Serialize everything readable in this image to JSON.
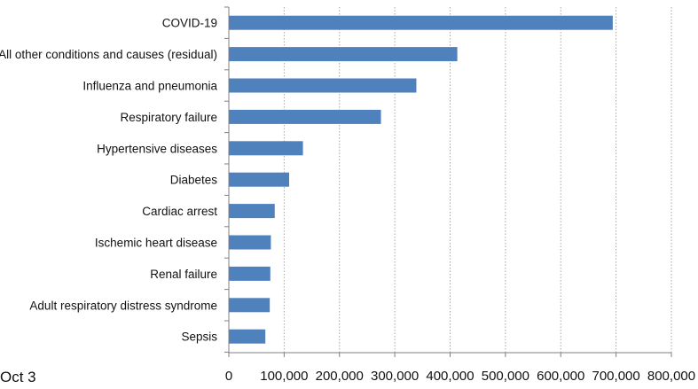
{
  "corner_note": "Oct 3",
  "colors": {
    "bar": "#4f81bd",
    "grid": "#a6a6a6",
    "axis": "#808080"
  },
  "chart_data": {
    "type": "bar",
    "orientation": "horizontal",
    "categories": [
      "COVID-19",
      "All other conditions and causes (residual)",
      "Influenza and pneumonia",
      "Respiratory failure",
      "Hypertensive diseases",
      "Diabetes",
      "Cardiac arrest",
      "Ischemic heart disease",
      "Renal failure",
      "Adult respiratory distress syndrome",
      "Sepsis"
    ],
    "values": [
      694000,
      413000,
      339000,
      275000,
      134000,
      109000,
      83000,
      76000,
      75000,
      74000,
      66000
    ],
    "xlim": [
      0,
      800000
    ],
    "xticks": [
      0,
      100000,
      200000,
      300000,
      400000,
      500000,
      600000,
      700000,
      800000
    ],
    "xtick_labels": [
      "0",
      "100,000",
      "200,000",
      "300,000",
      "400,000",
      "500,000",
      "600,000",
      "700,000",
      "800,000"
    ],
    "grid": true,
    "title": "",
    "xlabel": "",
    "ylabel": ""
  }
}
